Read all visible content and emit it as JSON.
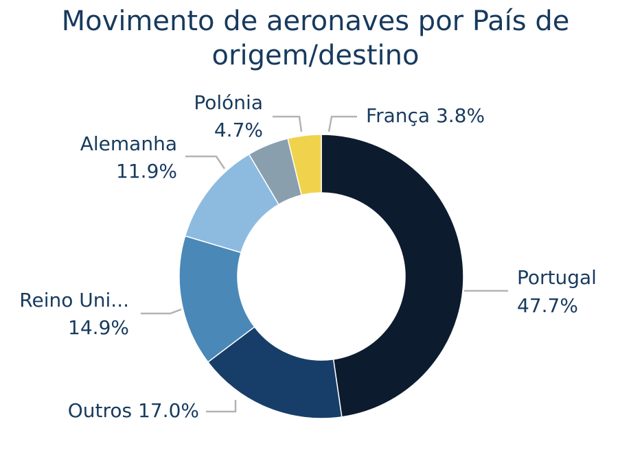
{
  "chart_data": {
    "type": "pie",
    "donut": true,
    "title": "Movimento de aeronaves por País de origem/destino",
    "unit": "%",
    "categories": [
      "Portugal",
      "Outros",
      "Reino Uni...",
      "Alemanha",
      "Polónia",
      "França"
    ],
    "values": [
      47.7,
      17.0,
      14.9,
      11.9,
      4.7,
      3.8
    ],
    "value_labels": [
      "47.7%",
      "17.0%",
      "14.9%",
      "11.9%",
      "4.7%",
      "3.8%"
    ],
    "colors": [
      "#0c1c2e",
      "#173e68",
      "#4a88b8",
      "#8dbbe0",
      "#8a9fae",
      "#f0d34c"
    ],
    "legend": "none",
    "label_position": "outside with leader lines"
  }
}
